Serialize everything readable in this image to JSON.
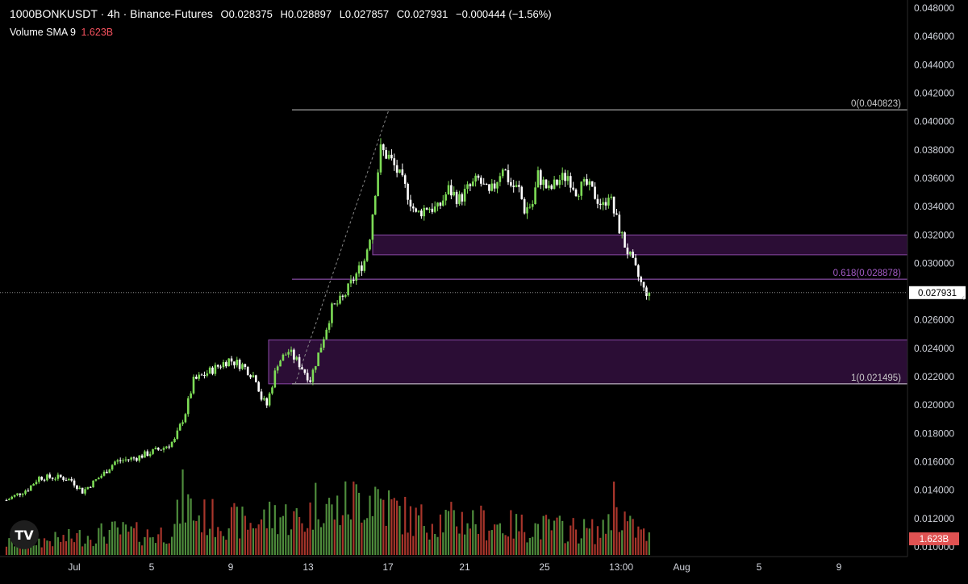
{
  "header": {
    "symbol": "1000BONKUSDT · 4h · Binance-Futures",
    "open": "O0.028375",
    "high": "H0.028897",
    "low": "L0.027857",
    "close": "C0.027931",
    "change": "−0.000444 (−1.56%)",
    "volume_label": "Volume SMA 9",
    "volume_value": "1.623B"
  },
  "price_badge": "0.027931",
  "volume_badge": "1.623B",
  "fib_labels": {
    "zero": "0(0.040823)",
    "six18": "0.618(0.028878)",
    "one": "1(0.021495)"
  },
  "logo_text": "TV",
  "colors": {
    "up": "#7ddc56",
    "down": "#ffffff",
    "vol_up": "#4e8c3c",
    "vol_down": "#a8352b",
    "zone": "#3a1147",
    "zone_border": "#8b4aa8",
    "fib_line": "#c9c9c9",
    "fib_618": "#a55cc8"
  },
  "chart_data": {
    "type": "candlestick",
    "y_ticks": [
      "0.048000",
      "0.046000",
      "0.044000",
      "0.042000",
      "0.040000",
      "0.038000",
      "0.036000",
      "0.034000",
      "0.032000",
      "0.030000",
      "0.028000",
      "0.026000",
      "0.024000",
      "0.022000",
      "0.020000",
      "0.018000",
      "0.016000",
      "0.014000",
      "0.012000",
      "0.010000"
    ],
    "ylim": [
      0.01,
      0.048
    ],
    "x_ticks": [
      "Jul",
      "5",
      "9",
      "13",
      "17",
      "21",
      "25",
      "13:00",
      "Aug",
      "5",
      "9"
    ],
    "last_price": 0.027931,
    "fib_levels": [
      {
        "level": 0,
        "price": 0.040823
      },
      {
        "level": 0.618,
        "price": 0.028878
      },
      {
        "level": 1,
        "price": 0.021495
      }
    ],
    "zones": [
      {
        "top": 0.032,
        "bottom": 0.0306
      },
      {
        "top": 0.0246,
        "bottom": 0.0215
      }
    ],
    "price_path": [
      [
        0,
        0.0133
      ],
      [
        8,
        0.0141
      ],
      [
        12,
        0.0149
      ],
      [
        20,
        0.0149
      ],
      [
        24,
        0.0147
      ],
      [
        28,
        0.0139
      ],
      [
        36,
        0.0152
      ],
      [
        40,
        0.016
      ],
      [
        48,
        0.0163
      ],
      [
        58,
        0.017
      ],
      [
        62,
        0.0175
      ],
      [
        66,
        0.0195
      ],
      [
        69,
        0.0217
      ],
      [
        76,
        0.0225
      ],
      [
        82,
        0.0232
      ],
      [
        87,
        0.0228
      ],
      [
        92,
        0.0219
      ],
      [
        94,
        0.0205
      ],
      [
        96,
        0.02
      ],
      [
        100,
        0.023
      ],
      [
        104,
        0.0238
      ],
      [
        108,
        0.0229
      ],
      [
        112,
        0.0218
      ],
      [
        116,
        0.0242
      ],
      [
        120,
        0.0268
      ],
      [
        124,
        0.0275
      ],
      [
        128,
        0.0289
      ],
      [
        132,
        0.0302
      ],
      [
        134,
        0.032
      ],
      [
        136,
        0.0352
      ],
      [
        138,
        0.038
      ],
      [
        141,
        0.0375
      ],
      [
        144,
        0.0365
      ],
      [
        148,
        0.0349
      ],
      [
        151,
        0.0334
      ],
      [
        155,
        0.034
      ],
      [
        159,
        0.0338
      ],
      [
        163,
        0.0352
      ],
      [
        167,
        0.0345
      ],
      [
        170,
        0.0352
      ],
      [
        174,
        0.0359
      ],
      [
        178,
        0.0348
      ],
      [
        180,
        0.0355
      ],
      [
        183,
        0.0369
      ],
      [
        186,
        0.0355
      ],
      [
        189,
        0.0352
      ],
      [
        191,
        0.0338
      ],
      [
        194,
        0.0342
      ],
      [
        196,
        0.0362
      ],
      [
        200,
        0.0351
      ],
      [
        204,
        0.0359
      ],
      [
        207,
        0.0362
      ],
      [
        210,
        0.0352
      ],
      [
        214,
        0.0355
      ],
      [
        217,
        0.0348
      ],
      [
        220,
        0.034
      ],
      [
        222,
        0.035
      ],
      [
        224,
        0.0336
      ],
      [
        228,
        0.0313
      ],
      [
        232,
        0.0295
      ],
      [
        235,
        0.0281
      ],
      [
        237,
        0.0279
      ]
    ],
    "volume_profile": [
      [
        0,
        0.3
      ],
      [
        20,
        0.4
      ],
      [
        40,
        0.6
      ],
      [
        55,
        0.5
      ],
      [
        62,
        0.7
      ],
      [
        65,
        1.45
      ],
      [
        70,
        1.0
      ],
      [
        90,
        0.8
      ],
      [
        100,
        1.05
      ],
      [
        110,
        0.85
      ],
      [
        116,
        1.55
      ],
      [
        120,
        1.1
      ],
      [
        128,
        1.4
      ],
      [
        136,
        1.6
      ],
      [
        140,
        1.3
      ],
      [
        150,
        0.9
      ],
      [
        170,
        0.9
      ],
      [
        185,
        0.75
      ],
      [
        200,
        0.7
      ],
      [
        220,
        0.6
      ],
      [
        224,
        1.4
      ],
      [
        230,
        0.7
      ],
      [
        237,
        0.45
      ]
    ],
    "bar_count": 238
  }
}
